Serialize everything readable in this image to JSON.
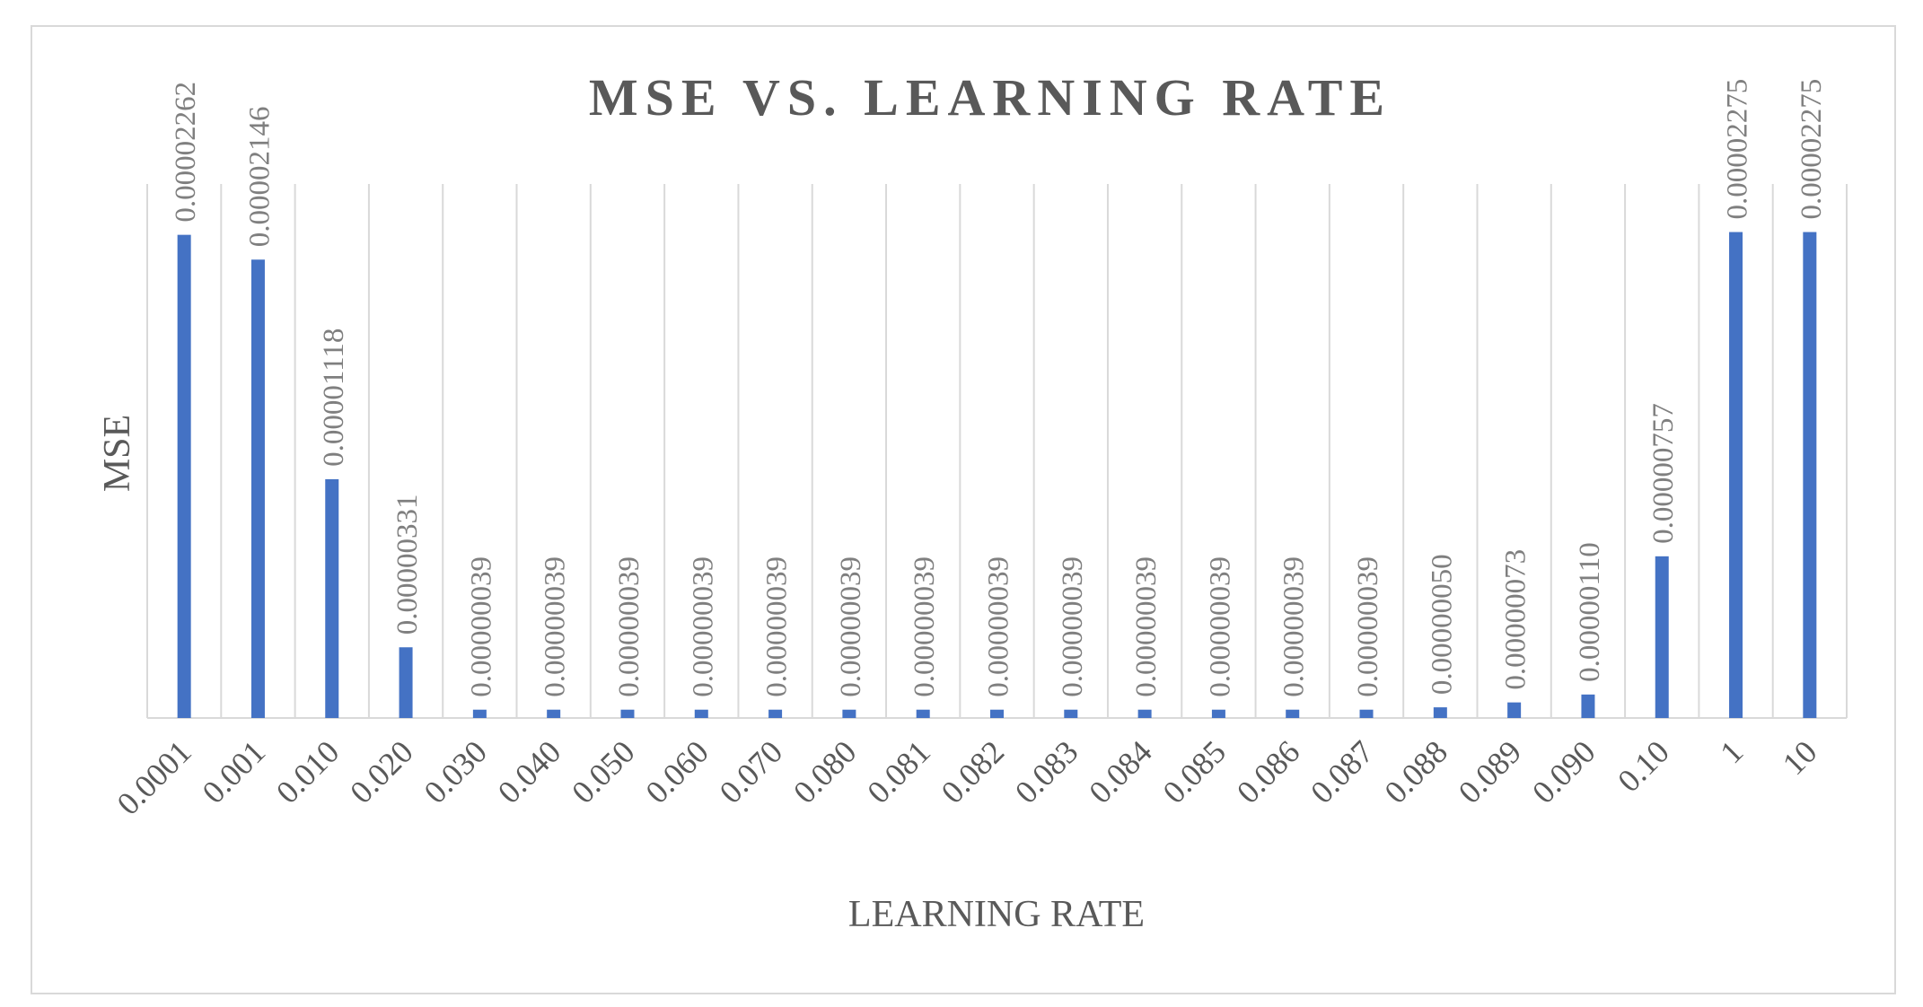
{
  "chart_data": {
    "type": "bar",
    "title": "MSE VS. LEARNING RATE",
    "xlabel": "LEARNING RATE",
    "ylabel": "MSE",
    "categories": [
      "0.0001",
      "0.001",
      "0.010",
      "0.020",
      "0.030",
      "0.040",
      "0.050",
      "0.060",
      "0.070",
      "0.080",
      "0.081",
      "0.082",
      "0.083",
      "0.084",
      "0.085",
      "0.086",
      "0.087",
      "0.088",
      "0.089",
      "0.090",
      "0.10",
      "1",
      "10"
    ],
    "values": [
      2.262e-05,
      2.146e-05,
      1.118e-05,
      3.31e-06,
      3.9e-07,
      3.9e-07,
      3.9e-07,
      3.9e-07,
      3.9e-07,
      3.9e-07,
      3.9e-07,
      3.9e-07,
      3.9e-07,
      3.9e-07,
      3.9e-07,
      3.9e-07,
      3.9e-07,
      5e-07,
      7.3e-07,
      1.1e-06,
      7.57e-06,
      2.275e-05,
      2.275e-05
    ],
    "data_labels": [
      "0.00002262",
      "0.00002146",
      "0.00001118",
      "0.00000331",
      "0.00000039",
      "0.00000039",
      "0.00000039",
      "0.00000039",
      "0.00000039",
      "0.00000039",
      "0.00000039",
      "0.00000039",
      "0.00000039",
      "0.00000039",
      "0.00000039",
      "0.00000039",
      "0.00000039",
      "0.00000050",
      "0.00000073",
      "0.00000110",
      "0.00000757",
      "0.00002275",
      "0.00002275"
    ],
    "ylim": [
      0,
      2.5e-05
    ],
    "grid": "vertical",
    "legend": "none",
    "bar_color": "#4472c4",
    "text_color": "#595959",
    "label_color": "#7f7f7f",
    "grid_color": "#d9d9d9"
  }
}
